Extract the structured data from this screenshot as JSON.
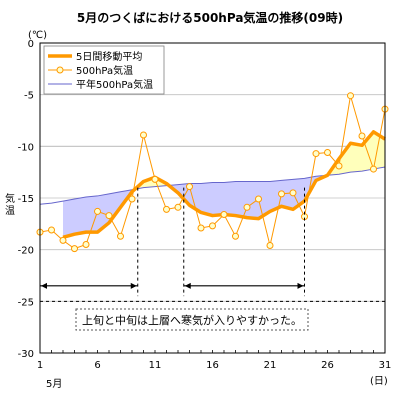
{
  "chart_data": {
    "type": "line",
    "title": "5月のつくばにおける500hPa気温の推移(09時)",
    "ylabel": "気温",
    "yunit": "(℃)",
    "xunit": "(日)",
    "xmonth": "5月",
    "ylim": [
      -30,
      0
    ],
    "yticks": [
      0,
      -5,
      -10,
      -15,
      -20,
      -25,
      -30
    ],
    "xlim": [
      1,
      31
    ],
    "xticks": [
      1,
      6,
      11,
      16,
      21,
      26,
      31
    ],
    "grid": true,
    "legend_position": "top-left",
    "x": [
      1,
      2,
      3,
      4,
      5,
      6,
      7,
      8,
      9,
      10,
      11,
      12,
      13,
      14,
      15,
      16,
      17,
      18,
      19,
      20,
      21,
      22,
      23,
      24,
      25,
      26,
      27,
      28,
      29,
      30,
      31
    ],
    "series": [
      {
        "name": "5日間移動平均",
        "color": "#ff9900",
        "style": "thick-line",
        "values": [
          null,
          null,
          -18.8,
          -18.5,
          -18.3,
          -18.3,
          -17.4,
          -15.9,
          -14.4,
          -13.4,
          -13.0,
          -13.6,
          -14.5,
          -15.7,
          -16.4,
          -16.7,
          -16.6,
          -16.7,
          -16.9,
          -17.0,
          -16.3,
          -15.8,
          -16.1,
          -15.3,
          -13.3,
          -12.8,
          -11.2,
          -9.7,
          -9.9,
          -8.6,
          -9.3
        ]
      },
      {
        "name": "500hPa気温",
        "color": "#ff9900",
        "marker": "#ffffcc",
        "style": "thin-line-markers",
        "values": [
          -18.3,
          -18.1,
          -19.1,
          -19.9,
          -19.5,
          -16.3,
          -16.7,
          -18.7,
          -15.1,
          -8.9,
          -13.2,
          -16.1,
          -15.9,
          -13.9,
          -17.9,
          -17.7,
          -16.6,
          -18.7,
          -15.9,
          -15.1,
          -19.6,
          -14.6,
          -14.5,
          -16.8,
          -10.7,
          -10.6,
          -11.9,
          -5.1,
          -9.0,
          -12.2,
          -6.4
        ]
      },
      {
        "name": "平年500hPa気温",
        "color": "#6666cc",
        "style": "normal-line",
        "values": [
          -15.6,
          -15.5,
          -15.3,
          -15.1,
          -14.9,
          -14.8,
          -14.6,
          -14.4,
          -14.2,
          -14.0,
          -13.9,
          -13.8,
          -13.7,
          -13.6,
          -13.6,
          -13.5,
          -13.5,
          -13.4,
          -13.4,
          -13.4,
          -13.4,
          -13.3,
          -13.2,
          -13.1,
          -12.9,
          -12.8,
          -12.7,
          -12.5,
          -12.4,
          -12.2,
          -12.0
        ]
      }
    ],
    "fills": {
      "below_normal": "#ccccff",
      "above_normal": "#ffffbb"
    },
    "spans": [
      {
        "from": 1,
        "to": 9.5,
        "y": -23.5
      },
      {
        "from": 13.5,
        "to": 24,
        "y": -23.5
      }
    ],
    "annotation": "上旬と中旬は上層へ寒気が入りやすかった。",
    "colors": {
      "grid": "#c0c0c0",
      "axis": "#000000",
      "ref_line": "#000000"
    }
  }
}
